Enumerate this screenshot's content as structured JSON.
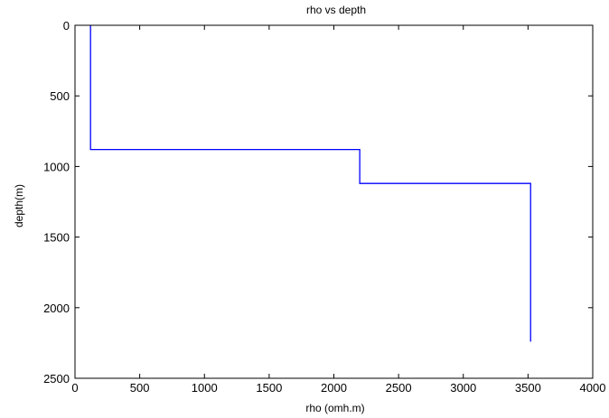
{
  "chart_data": {
    "type": "line",
    "title": "rho vs depth",
    "xlabel": "rho (omh.m)",
    "ylabel": "depth(m)",
    "xlim": [
      0,
      4000
    ],
    "ylim": [
      0,
      2500
    ],
    "y_reversed": true,
    "grid": false,
    "legend": "none",
    "xticks": [
      0,
      500,
      1000,
      1500,
      2000,
      2500,
      3000,
      3500,
      4000
    ],
    "yticks": [
      0,
      500,
      1000,
      1500,
      2000,
      2500
    ],
    "series": [
      {
        "color": "#0000ff",
        "points": [
          {
            "x": 120,
            "y": 0
          },
          {
            "x": 120,
            "y": 880
          },
          {
            "x": 2200,
            "y": 880
          },
          {
            "x": 2200,
            "y": 1120
          },
          {
            "x": 3520,
            "y": 1120
          },
          {
            "x": 3520,
            "y": 2240
          }
        ]
      }
    ]
  }
}
